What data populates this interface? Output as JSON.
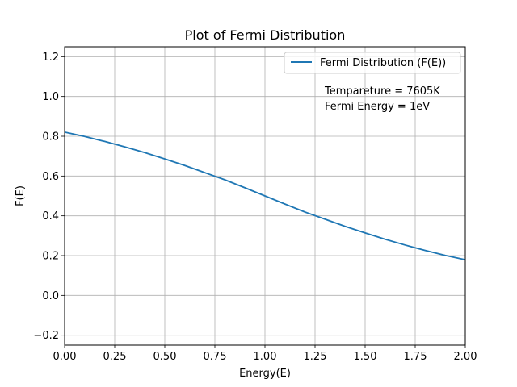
{
  "chart_data": {
    "type": "line",
    "title": "Plot of Fermi Distribution",
    "xlabel": "Energy(E)",
    "ylabel": "F(E)",
    "xlim": [
      0,
      2
    ],
    "ylim": [
      -0.25,
      1.25
    ],
    "xticks": [
      "0.00",
      "0.25",
      "0.50",
      "0.75",
      "1.00",
      "1.25",
      "1.50",
      "1.75",
      "2.00"
    ],
    "yticks": [
      "−0.2",
      "0.0",
      "0.2",
      "0.4",
      "0.6",
      "0.8",
      "1.0",
      "1.2"
    ],
    "grid": true,
    "legend_position": "top-right",
    "series": [
      {
        "name": "Fermi Distribution (F(E))",
        "color": "#1f77b4",
        "x": [
          0,
          0.1,
          0.2,
          0.3,
          0.4,
          0.5,
          0.6,
          0.7,
          0.8,
          0.9,
          1.0,
          1.1,
          1.2,
          1.3,
          1.4,
          1.5,
          1.6,
          1.7,
          1.8,
          1.9,
          2.0
        ],
        "y": [
          0.821,
          0.799,
          0.774,
          0.747,
          0.718,
          0.686,
          0.653,
          0.617,
          0.581,
          0.541,
          0.5,
          0.459,
          0.419,
          0.383,
          0.347,
          0.314,
          0.282,
          0.253,
          0.226,
          0.201,
          0.179
        ]
      }
    ],
    "annotations": [
      "Tempareture = 7605K",
      "Fermi Energy = 1eV"
    ]
  }
}
